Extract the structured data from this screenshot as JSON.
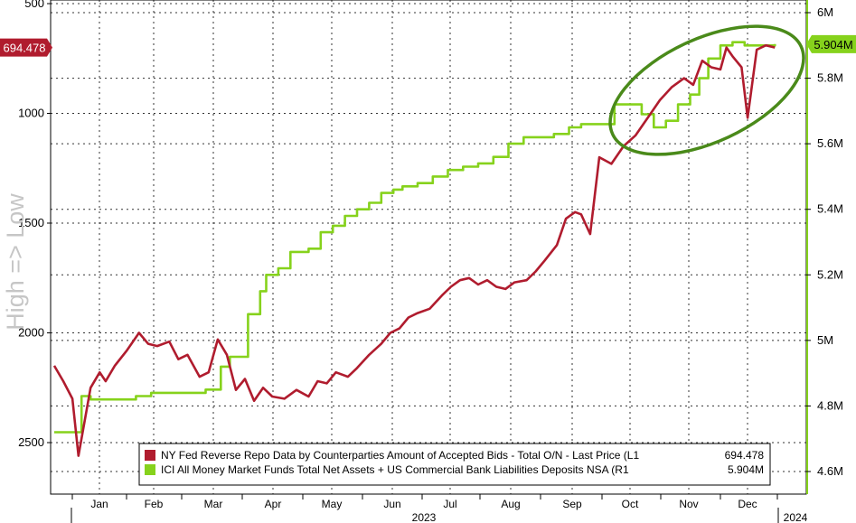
{
  "chart_data": {
    "type": "line",
    "ylabel_left": "High => Low",
    "left_axis": {
      "inverted": true,
      "range": [
        500,
        2700
      ],
      "ticks": [
        500,
        1000,
        1500,
        2000,
        2500
      ],
      "tick_labels": [
        "500",
        "1000",
        "1500",
        "2000",
        "2500"
      ]
    },
    "right_axis": {
      "range": [
        4.55,
        6.02
      ],
      "ticks": [
        4.6,
        4.8,
        5.0,
        5.2,
        5.4,
        5.6,
        5.8,
        6.0
      ],
      "tick_labels": [
        "4.6M",
        "4.8M",
        "5M",
        "5.2M",
        "5.4M",
        "5.6M",
        "5.8M",
        "6M"
      ]
    },
    "x_axis": {
      "months": [
        "Jan",
        "Feb",
        "Mar",
        "Apr",
        "May",
        "Jun",
        "Jul",
        "Aug",
        "Sep",
        "Oct",
        "Nov",
        "Dec"
      ],
      "year_labels": [
        "2023",
        "2024"
      ]
    },
    "grid": true,
    "legend_position": "bottom-center",
    "series": [
      {
        "name": "NY Fed Reverse Repo Data by Counterparties Amount of Accepted Bids - Total O/N - Last Price (L1",
        "last_value_label": "694.478",
        "axis": "left",
        "color": "#b01c2e",
        "t": [
          0.0,
          0.15,
          0.3,
          0.4,
          0.6,
          0.75,
          0.85,
          1.0,
          1.2,
          1.4,
          1.55,
          1.7,
          1.9,
          2.05,
          2.2,
          2.4,
          2.55,
          2.7,
          2.85,
          3.0,
          3.15,
          3.3,
          3.45,
          3.6,
          3.8,
          4.0,
          4.2,
          4.35,
          4.5,
          4.65,
          4.85,
          5.0,
          5.2,
          5.4,
          5.55,
          5.7,
          5.85,
          6.0,
          6.2,
          6.4,
          6.55,
          6.7,
          6.85,
          7.0,
          7.15,
          7.3,
          7.45,
          7.6,
          7.8,
          7.95,
          8.1,
          8.3,
          8.45,
          8.6,
          8.7,
          8.85,
          9.0,
          9.2,
          9.4,
          9.6,
          9.8,
          10.0,
          10.2,
          10.4,
          10.55,
          10.7,
          10.85,
          11.0,
          11.1,
          11.2,
          11.35,
          11.45,
          11.6,
          11.75,
          11.9
        ],
        "values": [
          2150,
          2220,
          2300,
          2560,
          2250,
          2180,
          2220,
          2150,
          2080,
          2000,
          2050,
          2060,
          2040,
          2120,
          2100,
          2200,
          2180,
          2030,
          2100,
          2260,
          2210,
          2310,
          2250,
          2290,
          2300,
          2260,
          2290,
          2220,
          2230,
          2180,
          2200,
          2160,
          2100,
          2050,
          2000,
          1980,
          1930,
          1910,
          1890,
          1830,
          1790,
          1760,
          1750,
          1780,
          1760,
          1790,
          1800,
          1770,
          1760,
          1720,
          1670,
          1600,
          1480,
          1450,
          1460,
          1550,
          1200,
          1230,
          1150,
          1100,
          1020,
          940,
          880,
          840,
          870,
          760,
          790,
          800,
          700,
          740,
          790,
          1020,
          710,
          690,
          700
        ]
      },
      {
        "name": "ICI All Money Market Funds Total Net Assets + US Commercial Bank Liabilities Deposits NSA (R1",
        "last_value_label": "5.904M",
        "axis": "right",
        "color": "#86d21c",
        "t": [
          0.0,
          0.3,
          0.45,
          0.6,
          1.0,
          1.35,
          1.6,
          2.0,
          2.5,
          2.75,
          2.9,
          3.0,
          3.2,
          3.4,
          3.5,
          3.7,
          3.9,
          4.0,
          4.2,
          4.4,
          4.6,
          4.8,
          5.0,
          5.2,
          5.4,
          5.6,
          5.75,
          6.0,
          6.25,
          6.5,
          6.75,
          7.0,
          7.25,
          7.5,
          7.75,
          8.0,
          8.25,
          8.5,
          8.7,
          9.0,
          9.25,
          9.5,
          9.7,
          9.9,
          10.1,
          10.3,
          10.5,
          10.65,
          10.8,
          11.0,
          11.2,
          11.4,
          11.65,
          11.9
        ],
        "values": [
          4.72,
          4.72,
          4.83,
          4.82,
          4.82,
          4.83,
          4.84,
          4.84,
          4.85,
          4.92,
          4.95,
          4.95,
          5.08,
          5.15,
          5.2,
          5.22,
          5.27,
          5.27,
          5.28,
          5.33,
          5.35,
          5.38,
          5.4,
          5.42,
          5.45,
          5.46,
          5.47,
          5.48,
          5.5,
          5.52,
          5.53,
          5.54,
          5.56,
          5.6,
          5.62,
          5.62,
          5.63,
          5.65,
          5.66,
          5.66,
          5.72,
          5.72,
          5.69,
          5.65,
          5.67,
          5.72,
          5.75,
          5.8,
          5.86,
          5.9,
          5.91,
          5.9,
          5.9,
          5.904
        ]
      }
    ]
  }
}
